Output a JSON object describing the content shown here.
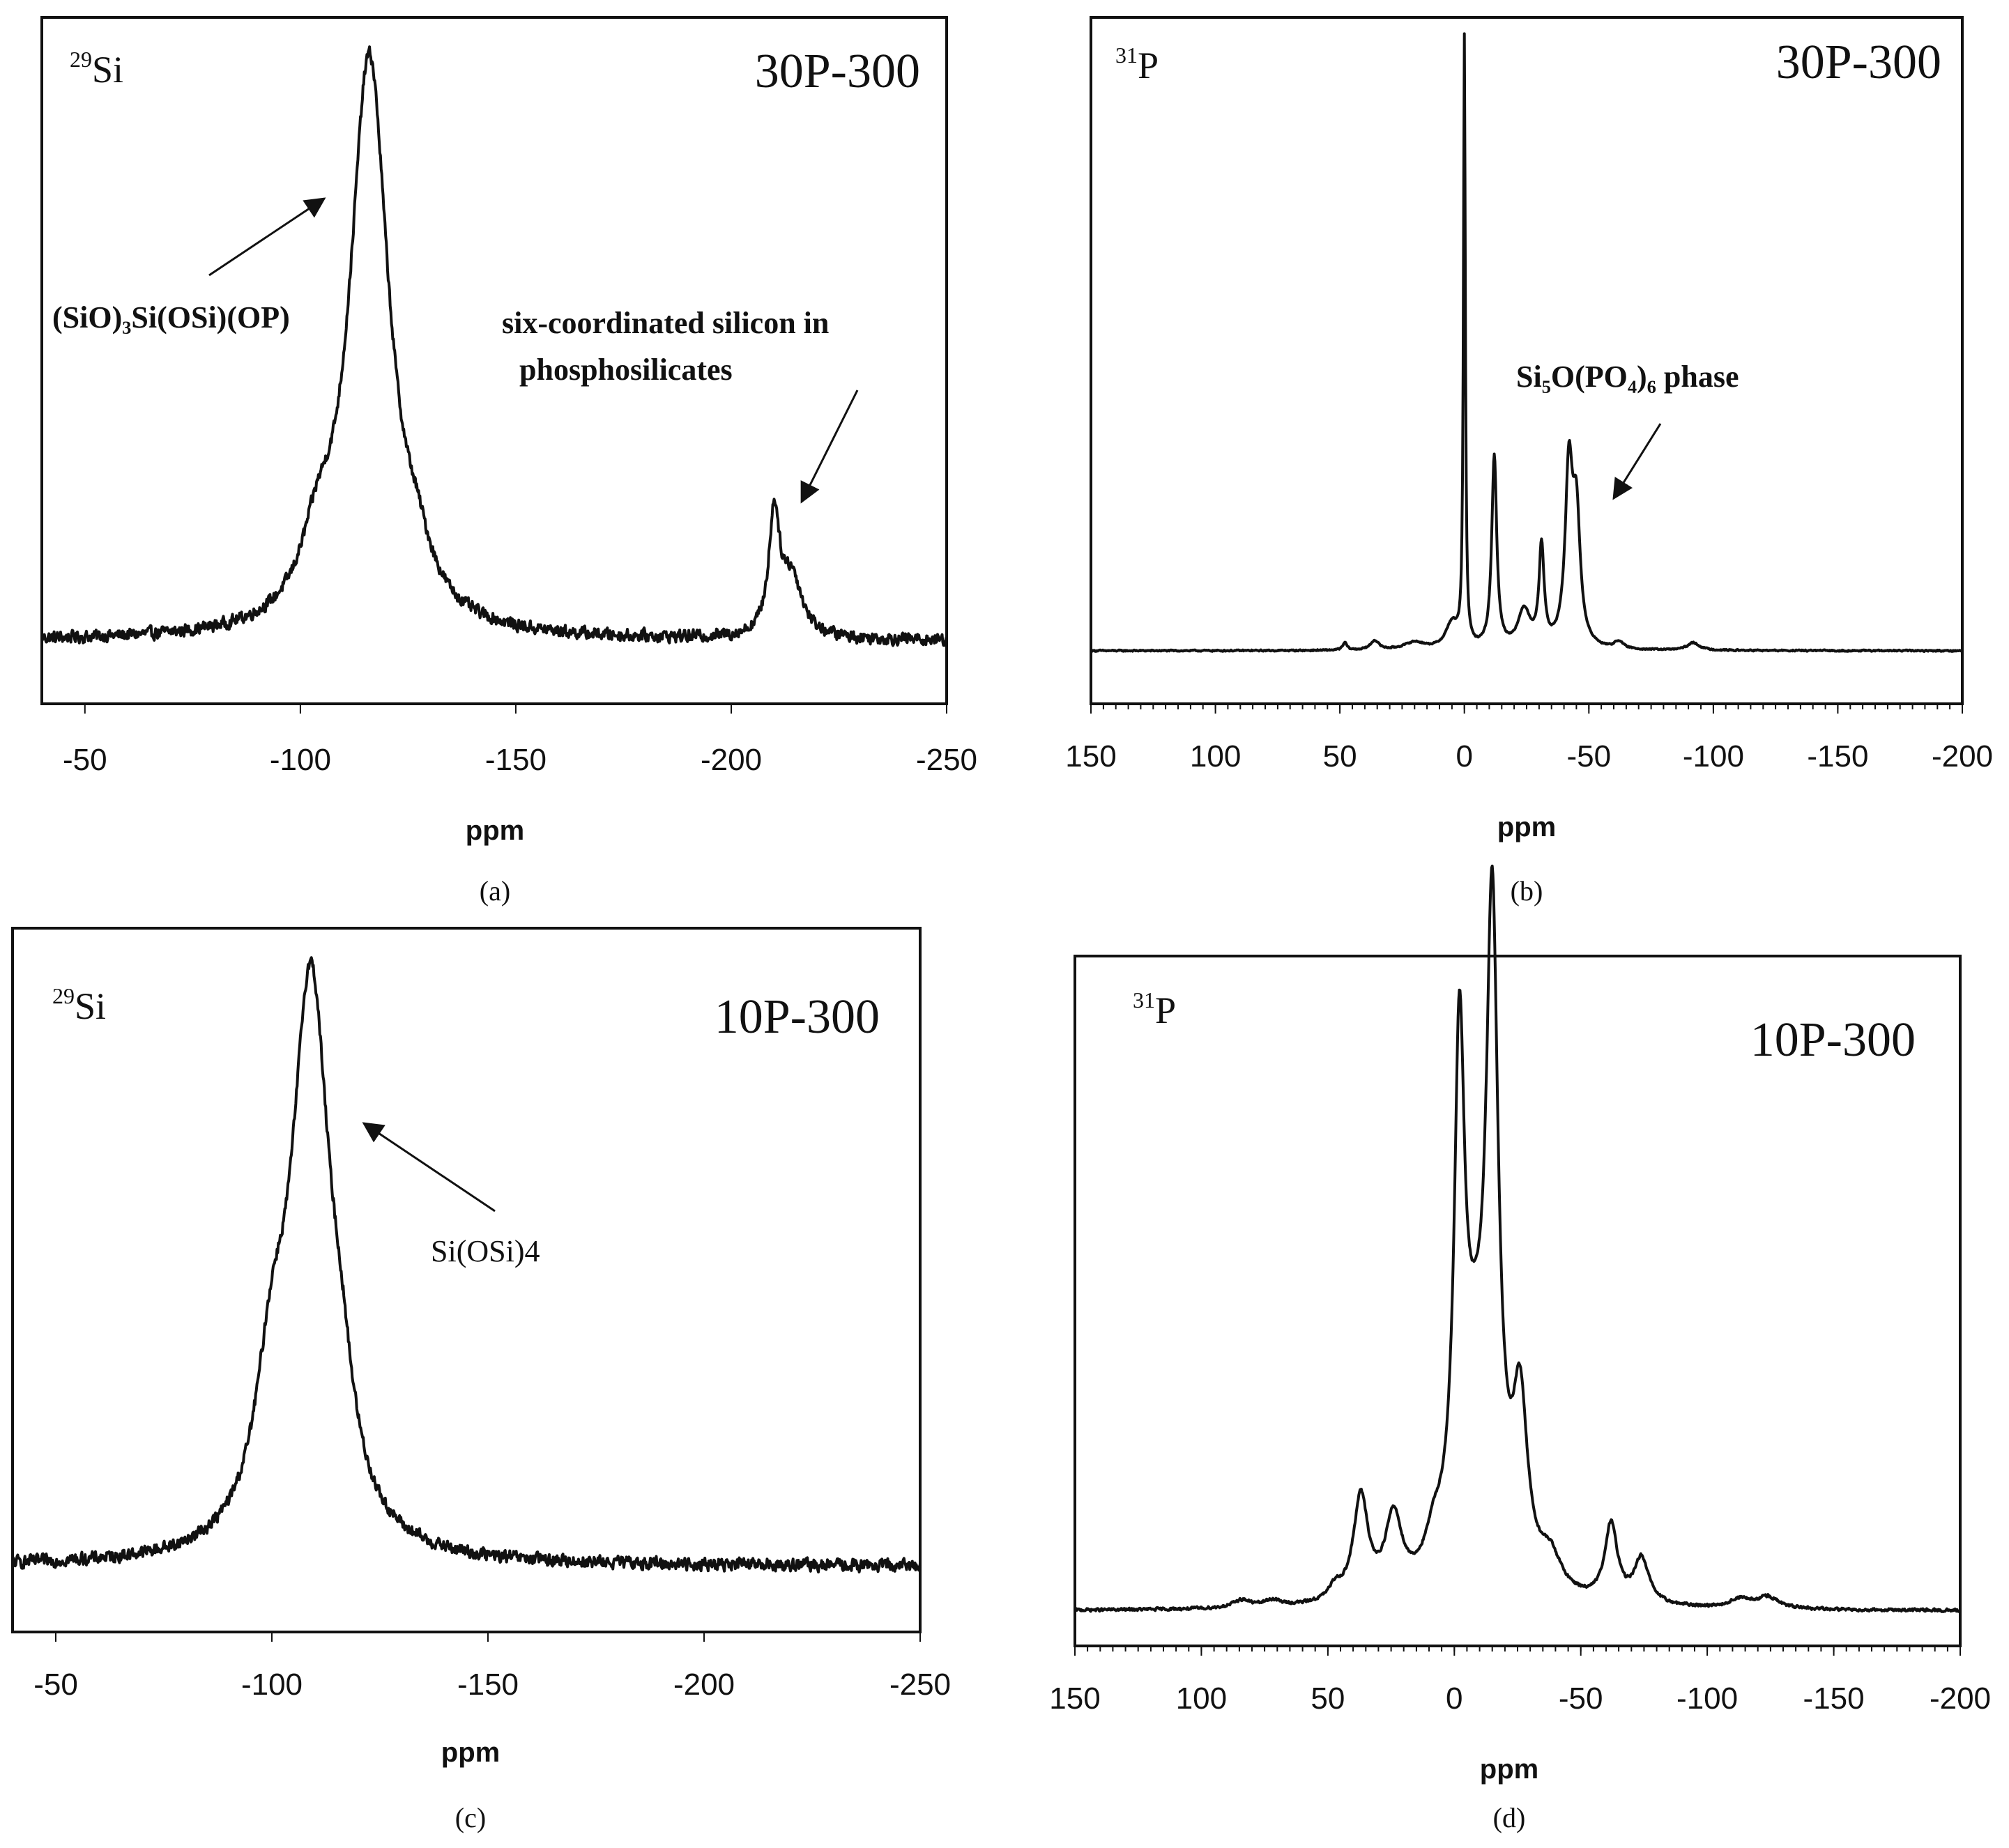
{
  "figure": {
    "panels": [
      {
        "id": "a",
        "nucleus_mass": "29",
        "nucleus_symbol": "Si",
        "sample": "30P-300",
        "caption": "(a)",
        "annotations": [
          "(SiO)₃Si(OSi)(OP)",
          "six-coordinated  silicon in",
          "phosphosilicates"
        ]
      },
      {
        "id": "b",
        "nucleus_mass": "31",
        "nucleus_symbol": "P",
        "sample": "30P-300",
        "caption": "(b)",
        "annotations": [
          "Si₅O(PO₄)₆ phase"
        ]
      },
      {
        "id": "c",
        "nucleus_mass": "29",
        "nucleus_symbol": "Si",
        "sample": "10P-300",
        "caption": "(c)",
        "annotations": [
          "Si(OSi)4"
        ]
      },
      {
        "id": "d",
        "nucleus_mass": "31",
        "nucleus_symbol": "P",
        "sample": "10P-300",
        "caption": "(d)",
        "annotations": []
      }
    ]
  },
  "chart_data": [
    {
      "type": "line",
      "title": "29Si 30P-300",
      "xlabel": "ppm",
      "ylabel": "",
      "xlim": [
        -40,
        -250
      ],
      "ylim": [
        -0.1,
        1.05
      ],
      "xticks": [
        -50,
        -100,
        -150,
        -200,
        -250
      ],
      "tick_labels": [
        "-50",
        "-100",
        "-150",
        "-200",
        "-250"
      ],
      "noise": 0.014,
      "peaks": [
        {
          "center": -116,
          "height": 0.97,
          "width": 5.5
        },
        {
          "center": -104,
          "height": 0.1,
          "width": 4.5
        },
        {
          "center": -127,
          "height": 0.06,
          "width": 4
        },
        {
          "center": -210,
          "height": 0.2,
          "width": 1.5
        },
        {
          "center": -214,
          "height": 0.1,
          "width": 3
        }
      ],
      "annotations": [
        "(SiO)₃Si(OSi)(OP)",
        "six-coordinated silicon in phosphosilicates"
      ]
    },
    {
      "type": "line",
      "title": "31P 30P-300",
      "xlabel": "ppm",
      "ylabel": "",
      "xlim": [
        150,
        -200
      ],
      "ylim": [
        -0.08,
        1.02
      ],
      "xticks": [
        150,
        100,
        50,
        0,
        -50,
        -100,
        -150,
        -200
      ],
      "tick_labels": [
        "150",
        "100",
        "50",
        "0",
        "-50",
        "-100",
        "-150",
        "-200"
      ],
      "noise": 0.0015,
      "peaks": [
        {
          "center": 0,
          "height": 0.98,
          "width": 0.45
        },
        {
          "center": -12,
          "height": 0.31,
          "width": 1.2
        },
        {
          "center": -24,
          "height": 0.06,
          "width": 3
        },
        {
          "center": -31,
          "height": 0.16,
          "width": 1.2
        },
        {
          "center": -42,
          "height": 0.28,
          "width": 1.8
        },
        {
          "center": -45,
          "height": 0.2,
          "width": 1.8
        },
        {
          "center": 48,
          "height": 0.012,
          "width": 1
        },
        {
          "center": 36,
          "height": 0.015,
          "width": 2
        },
        {
          "center": 20,
          "height": 0.012,
          "width": 5
        },
        {
          "center": 5,
          "height": 0.04,
          "width": 3
        },
        {
          "center": -62,
          "height": 0.012,
          "width": 2
        },
        {
          "center": -92,
          "height": 0.012,
          "width": 3
        }
      ],
      "annotations": [
        "Si₅O(PO₄)₆ phase"
      ]
    },
    {
      "type": "line",
      "title": "29Si 10P-300",
      "xlabel": "ppm",
      "ylabel": "",
      "xlim": [
        -40,
        -250
      ],
      "ylim": [
        -0.1,
        1.05
      ],
      "xticks": [
        -50,
        -100,
        -150,
        -200,
        -250
      ],
      "tick_labels": [
        "-50",
        "-100",
        "-150",
        "-200",
        "-250"
      ],
      "noise": 0.014,
      "peaks": [
        {
          "center": -109,
          "height": 0.93,
          "width": 5.5
        },
        {
          "center": -100,
          "height": 0.22,
          "width": 4.5
        },
        {
          "center": -116,
          "height": 0.12,
          "width": 3.5
        }
      ],
      "annotations": [
        "Si(OSi)4"
      ]
    },
    {
      "type": "line",
      "title": "31P 10P-300",
      "xlabel": "ppm",
      "ylabel": "",
      "xlim": [
        150,
        -200
      ],
      "ylim": [
        -0.05,
        1.02
      ],
      "xticks": [
        150,
        100,
        50,
        0,
        -50,
        -100,
        -150,
        -200
      ],
      "tick_labels": [
        "150",
        "100",
        "50",
        "0",
        "-50",
        "-100",
        "-150",
        "-200"
      ],
      "noise": 0.003,
      "peaks": [
        {
          "center": -2,
          "height": 0.72,
          "width": 2.4
        },
        {
          "center": -15,
          "height": 0.94,
          "width": 2.8
        },
        {
          "center": -26,
          "height": 0.26,
          "width": 3.5
        },
        {
          "center": 8,
          "height": 0.05,
          "width": 4
        },
        {
          "center": -8,
          "height": 0.3,
          "width": 8
        },
        {
          "center": -38,
          "height": 0.05,
          "width": 5
        },
        {
          "center": 37,
          "height": 0.16,
          "width": 3.5
        },
        {
          "center": 24,
          "height": 0.12,
          "width": 4
        },
        {
          "center": 47,
          "height": 0.02,
          "width": 3
        },
        {
          "center": -62,
          "height": 0.12,
          "width": 3
        },
        {
          "center": -74,
          "height": 0.07,
          "width": 3.5
        },
        {
          "center": 84,
          "height": 0.012,
          "width": 4
        },
        {
          "center": 72,
          "height": 0.01,
          "width": 4
        },
        {
          "center": -113,
          "height": 0.014,
          "width": 5
        },
        {
          "center": -124,
          "height": 0.018,
          "width": 5
        }
      ],
      "annotations": []
    }
  ]
}
